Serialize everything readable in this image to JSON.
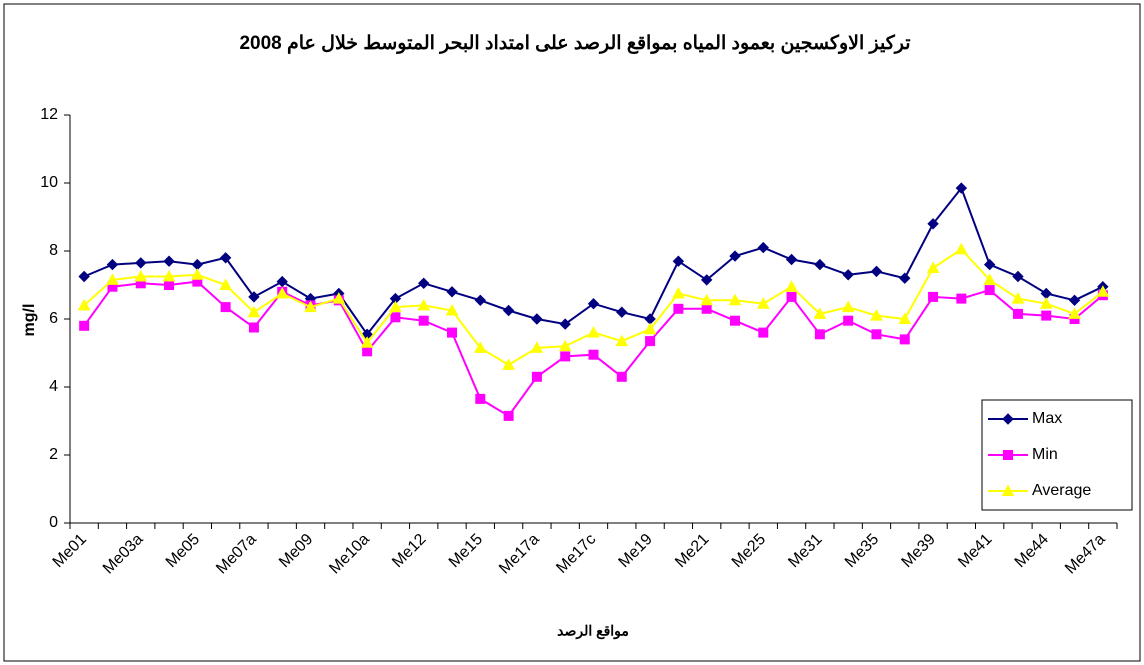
{
  "chart_data": {
    "type": "line",
    "title": "تركيز الاوكسجين بعمود المياه بمواقع الرصد على امتداد البحر المتوسط خلال عام 2008",
    "x_label": "مواقع الرصد",
    "y_label": "mg/l",
    "categories": [
      "Me01",
      null,
      "Me03a",
      null,
      "Me05",
      null,
      "Me07a",
      null,
      "Me09",
      null,
      "Me10a",
      null,
      "Me12",
      null,
      "Me15",
      null,
      "Me17a",
      null,
      "Me17c",
      null,
      "Me19",
      null,
      "Me21",
      null,
      "Me25",
      null,
      "Me31",
      null,
      "Me35",
      null,
      "Me39",
      null,
      "Me41",
      null,
      "Me44",
      null,
      "Me47a"
    ],
    "series": [
      {
        "name": "Max",
        "color": "#000080",
        "marker": "diamond",
        "values": [
          7.25,
          7.6,
          7.65,
          7.7,
          7.6,
          7.8,
          6.65,
          7.1,
          6.6,
          6.75,
          5.55,
          6.6,
          7.05,
          6.8,
          6.55,
          6.25,
          6.0,
          5.85,
          6.45,
          6.2,
          6.0,
          7.7,
          7.15,
          7.85,
          8.1,
          7.75,
          7.6,
          7.3,
          7.4,
          7.2,
          8.8,
          9.85,
          7.6,
          7.25,
          6.75,
          6.55,
          6.95
        ]
      },
      {
        "name": "Min",
        "color": "#ff00ff",
        "marker": "square",
        "values": [
          5.8,
          6.95,
          7.05,
          7.0,
          7.1,
          6.35,
          5.75,
          6.8,
          6.4,
          6.55,
          5.05,
          6.05,
          5.95,
          5.6,
          3.65,
          3.15,
          4.3,
          4.9,
          4.95,
          4.3,
          5.35,
          6.3,
          6.3,
          5.95,
          5.6,
          6.65,
          5.55,
          5.95,
          5.55,
          5.4,
          6.65,
          6.6,
          6.85,
          6.15,
          6.1,
          6.0,
          6.7
        ]
      },
      {
        "name": "Average",
        "color": "#ffff00",
        "marker": "triangle",
        "values": [
          6.4,
          7.15,
          7.25,
          7.25,
          7.3,
          7.0,
          6.2,
          6.75,
          6.35,
          6.6,
          5.3,
          6.35,
          6.4,
          6.25,
          5.15,
          4.65,
          5.15,
          5.2,
          5.6,
          5.35,
          5.7,
          6.75,
          6.55,
          6.55,
          6.45,
          6.95,
          6.15,
          6.35,
          6.1,
          6.0,
          7.5,
          8.05,
          7.15,
          6.6,
          6.45,
          6.15,
          6.8
        ]
      }
    ],
    "ylim": [
      0,
      12
    ],
    "yticks": [
      0,
      2,
      4,
      6,
      8,
      10,
      12
    ],
    "grid": false,
    "legend_position": "right"
  }
}
